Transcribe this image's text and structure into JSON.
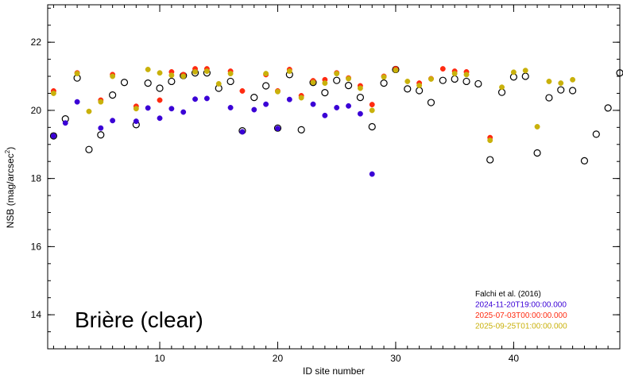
{
  "chart_data": {
    "type": "scatter",
    "title": "",
    "xlabel": "ID site number",
    "ylabel": "NSB (mag/arcsec",
    "ylabel_sup": "2",
    "ylabel_close": ")",
    "xlim": [
      0.5,
      49
    ],
    "ylim": [
      13,
      23.1
    ],
    "x_ticks": [
      10,
      20,
      30,
      40
    ],
    "y_ticks": [
      14,
      16,
      18,
      20,
      22
    ],
    "annotation": "Brière (clear)",
    "legend_position": "bottom-right",
    "series": [
      {
        "name": "Falchi et al. (2016)",
        "color": "#000000",
        "marker": "open-circle",
        "points": [
          [
            1,
            19.25
          ],
          [
            2,
            19.75
          ],
          [
            3,
            20.95
          ],
          [
            4,
            18.85
          ],
          [
            5,
            19.28
          ],
          [
            6,
            20.45
          ],
          [
            7,
            20.82
          ],
          [
            8,
            19.58
          ],
          [
            9,
            20.8
          ],
          [
            10,
            20.65
          ],
          [
            11,
            20.85
          ],
          [
            12,
            21.02
          ],
          [
            13,
            21.1
          ],
          [
            14,
            21.1
          ],
          [
            15,
            20.65
          ],
          [
            16,
            20.85
          ],
          [
            17,
            19.4
          ],
          [
            18,
            20.38
          ],
          [
            19,
            20.72
          ],
          [
            20,
            19.48
          ],
          [
            21,
            21.05
          ],
          [
            22,
            19.43
          ],
          [
            23,
            20.82
          ],
          [
            24,
            20.52
          ],
          [
            25,
            20.88
          ],
          [
            26,
            20.73
          ],
          [
            27,
            20.38
          ],
          [
            28,
            19.52
          ],
          [
            29,
            20.8
          ],
          [
            30,
            21.2
          ],
          [
            31,
            20.63
          ],
          [
            32,
            20.58
          ],
          [
            33,
            20.23
          ],
          [
            34,
            20.88
          ],
          [
            35,
            20.92
          ],
          [
            36,
            20.85
          ],
          [
            37,
            20.78
          ],
          [
            38,
            18.55
          ],
          [
            39,
            20.53
          ],
          [
            40,
            20.98
          ],
          [
            41,
            21.0
          ],
          [
            42,
            18.75
          ],
          [
            43,
            20.37
          ],
          [
            44,
            20.6
          ],
          [
            45,
            20.58
          ],
          [
            46,
            18.52
          ],
          [
            47,
            19.3
          ],
          [
            48,
            20.07
          ],
          [
            49,
            21.1
          ]
        ]
      },
      {
        "name": "2024-11-20T19:00:00.000",
        "color": "#3a00d6",
        "marker": "filled-circle",
        "points": [
          [
            1,
            19.25
          ],
          [
            2,
            19.63
          ],
          [
            3,
            20.25
          ],
          [
            5,
            19.48
          ],
          [
            6,
            19.7
          ],
          [
            8,
            19.68
          ],
          [
            9,
            20.07
          ],
          [
            10,
            19.77
          ],
          [
            11,
            20.05
          ],
          [
            12,
            19.95
          ],
          [
            13,
            20.33
          ],
          [
            14,
            20.35
          ],
          [
            16,
            20.08
          ],
          [
            17,
            19.37
          ],
          [
            18,
            20.02
          ],
          [
            19,
            20.18
          ],
          [
            20,
            19.47
          ],
          [
            21,
            20.32
          ],
          [
            23,
            20.18
          ],
          [
            24,
            19.85
          ],
          [
            25,
            20.08
          ],
          [
            26,
            20.13
          ],
          [
            27,
            19.9
          ],
          [
            28,
            18.13
          ]
        ]
      },
      {
        "name": "2025-07-03T00:00:00.000",
        "color": "#ff2a10",
        "marker": "filled-circle",
        "points": [
          [
            1,
            20.57
          ],
          [
            3,
            21.1
          ],
          [
            5,
            20.3
          ],
          [
            6,
            21.05
          ],
          [
            8,
            20.12
          ],
          [
            10,
            20.3
          ],
          [
            11,
            21.13
          ],
          [
            12,
            21.05
          ],
          [
            13,
            21.22
          ],
          [
            14,
            21.22
          ],
          [
            16,
            21.15
          ],
          [
            17,
            20.57
          ],
          [
            19,
            21.05
          ],
          [
            20,
            20.57
          ],
          [
            21,
            21.2
          ],
          [
            22,
            20.43
          ],
          [
            23,
            20.87
          ],
          [
            24,
            20.9
          ],
          [
            25,
            21.1
          ],
          [
            26,
            20.95
          ],
          [
            27,
            20.72
          ],
          [
            28,
            20.17
          ],
          [
            29,
            21.0
          ],
          [
            30,
            21.22
          ],
          [
            32,
            20.8
          ],
          [
            33,
            20.93
          ],
          [
            34,
            21.22
          ],
          [
            35,
            21.15
          ],
          [
            36,
            21.13
          ],
          [
            38,
            19.2
          ]
        ]
      },
      {
        "name": "2025-09-25T01:00:00.000",
        "color": "#c9b10b",
        "marker": "filled-circle",
        "points": [
          [
            1,
            20.5
          ],
          [
            3,
            21.08
          ],
          [
            4,
            19.97
          ],
          [
            5,
            20.25
          ],
          [
            6,
            21.0
          ],
          [
            8,
            20.05
          ],
          [
            9,
            21.2
          ],
          [
            10,
            21.1
          ],
          [
            11,
            21.03
          ],
          [
            12,
            21.0
          ],
          [
            13,
            21.13
          ],
          [
            14,
            21.15
          ],
          [
            15,
            20.78
          ],
          [
            16,
            21.08
          ],
          [
            19,
            21.08
          ],
          [
            20,
            20.55
          ],
          [
            21,
            21.15
          ],
          [
            22,
            20.37
          ],
          [
            23,
            20.82
          ],
          [
            24,
            20.8
          ],
          [
            25,
            21.08
          ],
          [
            26,
            20.93
          ],
          [
            27,
            20.65
          ],
          [
            28,
            20.0
          ],
          [
            29,
            20.98
          ],
          [
            30,
            21.18
          ],
          [
            31,
            20.85
          ],
          [
            32,
            20.73
          ],
          [
            33,
            20.92
          ],
          [
            35,
            21.08
          ],
          [
            36,
            21.05
          ],
          [
            38,
            19.12
          ],
          [
            39,
            20.68
          ],
          [
            40,
            21.12
          ],
          [
            41,
            21.17
          ],
          [
            42,
            19.52
          ],
          [
            43,
            20.85
          ],
          [
            44,
            20.8
          ],
          [
            45,
            20.9
          ]
        ]
      }
    ]
  }
}
